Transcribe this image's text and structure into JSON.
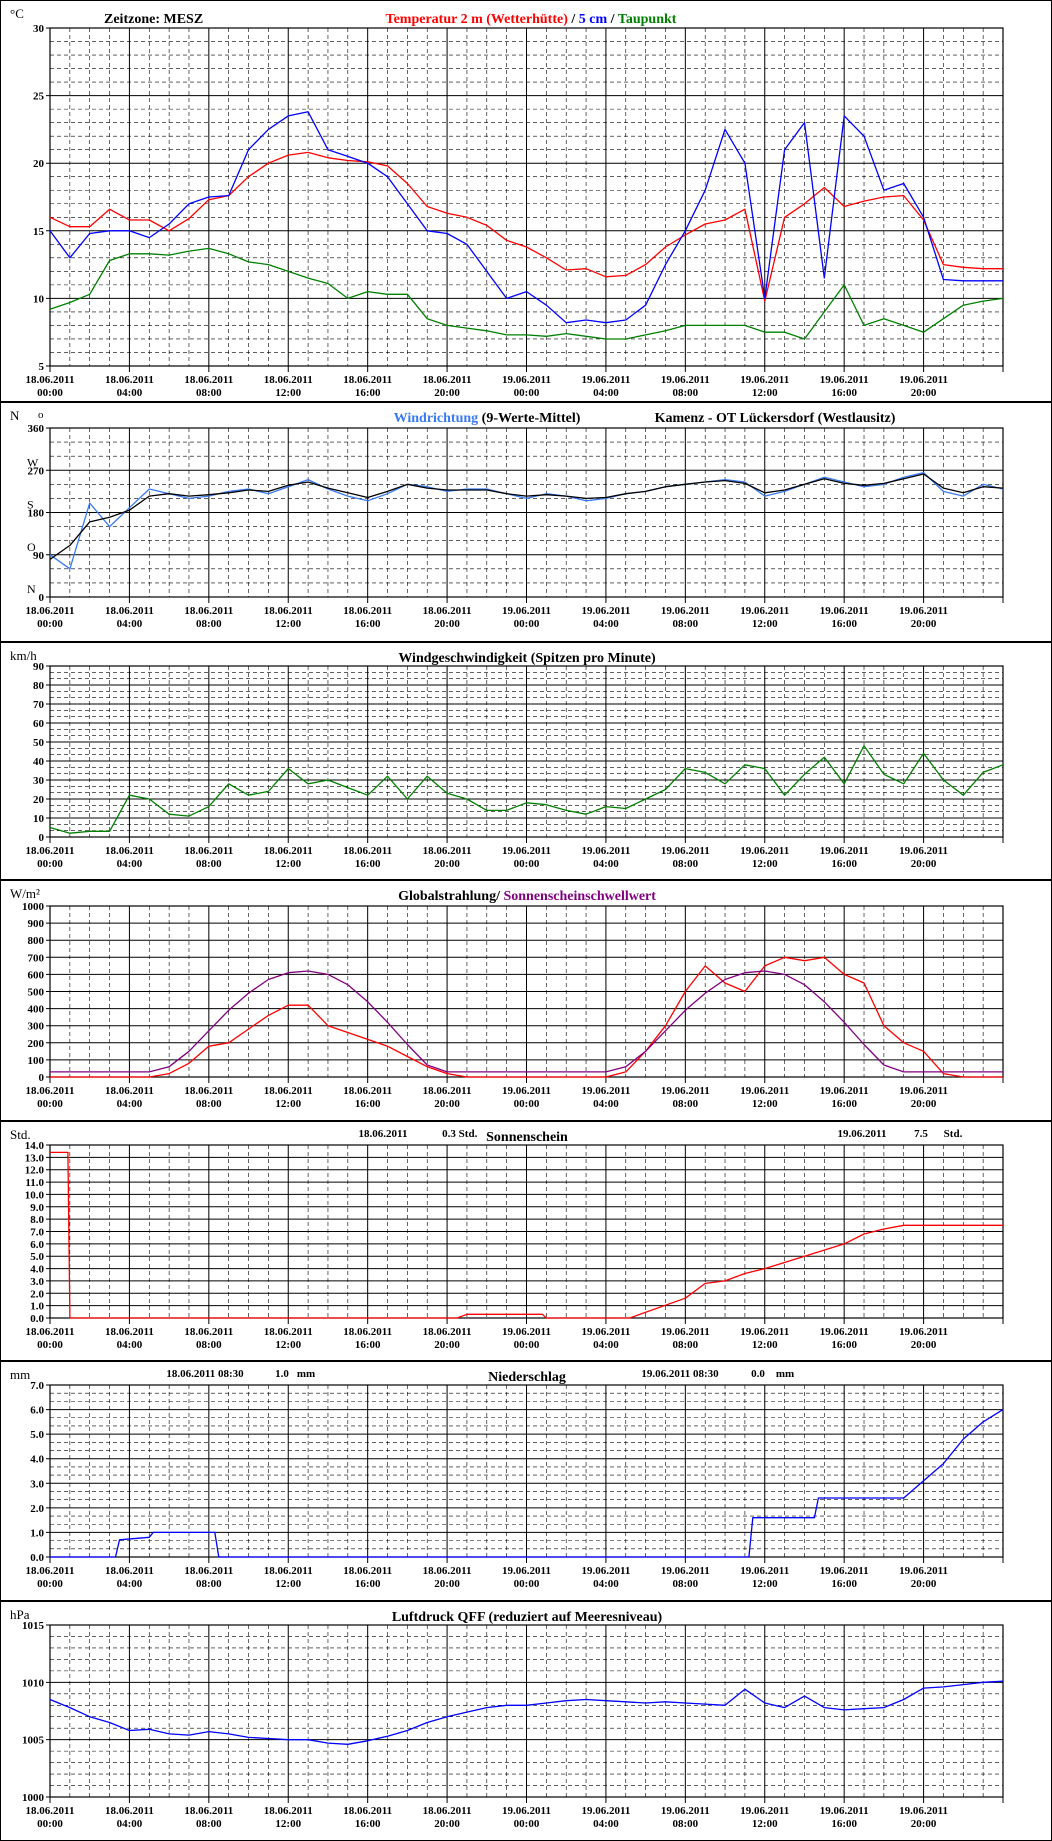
{
  "x_ticks": [
    [
      "18.06.2011",
      "00:00"
    ],
    [
      "18.06.2011",
      "04:00"
    ],
    [
      "18.06.2011",
      "08:00"
    ],
    [
      "18.06.2011",
      "12:00"
    ],
    [
      "18.06.2011",
      "16:00"
    ],
    [
      "18.06.2011",
      "20:00"
    ],
    [
      "19.06.2011",
      "00:00"
    ],
    [
      "19.06.2011",
      "04:00"
    ],
    [
      "19.06.2011",
      "08:00"
    ],
    [
      "19.06.2011",
      "12:00"
    ],
    [
      "19.06.2011",
      "16:00"
    ],
    [
      "19.06.2011",
      "20:00"
    ]
  ],
  "chart_data": [
    {
      "id": "temperature",
      "type": "line",
      "unit_label": "°C",
      "header_left": "Zeitzone: MESZ",
      "title_parts": [
        {
          "text": "Temperatur 2 m (Wetterhütte)",
          "color": "#ff0000"
        },
        {
          "text": "  /  ",
          "color": "#000000"
        },
        {
          "text": "5 cm",
          "color": "#0000ff"
        },
        {
          "text": " / ",
          "color": "#000000"
        },
        {
          "text": "Taupunkt",
          "color": "#008000"
        }
      ],
      "ylim": [
        5,
        30
      ],
      "y_ticks": [
        5,
        10,
        15,
        20,
        25,
        30
      ],
      "minor_per_major": 5,
      "x_hours": [
        0,
        1,
        2,
        3,
        4,
        5,
        6,
        7,
        8,
        9,
        10,
        11,
        12,
        13,
        14,
        15,
        16,
        17,
        18,
        19,
        20,
        21,
        22,
        23,
        24,
        25,
        26,
        27,
        28,
        29,
        30,
        31,
        32,
        33,
        34,
        35,
        36,
        37,
        38,
        39,
        40,
        41,
        42,
        43,
        44,
        45,
        46,
        47,
        48
      ],
      "series": [
        {
          "name": "Temperatur 2 m (Wetterhütte)",
          "color": "#ff0000",
          "values": [
            16.0,
            15.3,
            15.3,
            16.6,
            15.8,
            15.8,
            15.0,
            15.9,
            17.3,
            17.6,
            19.0,
            20.0,
            20.6,
            20.8,
            20.4,
            20.2,
            20.1,
            19.8,
            18.5,
            16.8,
            16.3,
            16.0,
            15.4,
            14.3,
            13.8,
            13.0,
            12.1,
            12.2,
            11.6,
            11.7,
            12.5,
            13.8,
            14.7,
            15.5,
            15.8,
            16.6,
            9.8,
            16.0,
            17.0,
            18.2,
            16.8,
            17.2,
            17.5,
            17.6,
            15.8,
            12.5,
            12.3,
            12.2,
            12.2
          ]
        },
        {
          "name": "5 cm",
          "color": "#0000ff",
          "values": [
            15.0,
            13.0,
            14.8,
            15.0,
            15.0,
            14.5,
            15.5,
            17.0,
            17.5,
            17.6,
            21.0,
            22.5,
            23.5,
            23.8,
            21.0,
            20.5,
            20.0,
            19.0,
            17.0,
            15.0,
            14.8,
            14.0,
            12.0,
            10.0,
            10.5,
            9.5,
            8.2,
            8.4,
            8.2,
            8.4,
            9.5,
            12.5,
            15.0,
            18.0,
            22.5,
            20.0,
            10.0,
            21.0,
            23.0,
            11.5,
            23.5,
            22.0,
            18.0,
            18.5,
            16.0,
            11.4,
            11.3,
            11.3,
            11.3
          ]
        },
        {
          "name": "Taupunkt",
          "color": "#008000",
          "values": [
            9.2,
            9.7,
            10.3,
            12.8,
            13.3,
            13.3,
            13.2,
            13.5,
            13.7,
            13.3,
            12.7,
            12.5,
            12.0,
            11.5,
            11.1,
            10.0,
            10.5,
            10.3,
            10.3,
            8.5,
            8.0,
            7.8,
            7.6,
            7.3,
            7.3,
            7.2,
            7.4,
            7.2,
            7.0,
            7.0,
            7.3,
            7.6,
            8.0,
            8.0,
            8.0,
            8.0,
            7.5,
            7.5,
            7.0,
            9.0,
            11.0,
            8.0,
            8.5,
            8.0,
            7.5,
            8.5,
            9.5,
            9.8,
            10.0
          ]
        }
      ]
    },
    {
      "id": "wind_direction",
      "type": "line",
      "unit_label": "N",
      "unit_label_extra": "o",
      "header_left": "",
      "title_parts": [
        {
          "text": "Windrichtung",
          "color": "#3a7af0"
        },
        {
          "text": " (9-Werte-Mittel)",
          "color": "#000000"
        }
      ],
      "title_right": "Kamenz - OT Lückersdorf (Westlausitz)",
      "ylim": [
        0,
        360
      ],
      "y_ticks": [
        0,
        90,
        180,
        270,
        360
      ],
      "y_tick_labels": [
        "0",
        "90",
        "180",
        "270",
        "360"
      ],
      "compass_labels": [
        {
          "label": "N",
          "value": 0
        },
        {
          "label": "O",
          "value": 90
        },
        {
          "label": "S",
          "value": 180
        },
        {
          "label": "W",
          "value": 270
        },
        {
          "label": "N",
          "value": 360
        }
      ],
      "minor_per_major": 3,
      "x_hours": [
        0,
        1,
        2,
        3,
        4,
        5,
        6,
        7,
        8,
        9,
        10,
        11,
        12,
        13,
        14,
        15,
        16,
        17,
        18,
        19,
        20,
        21,
        22,
        23,
        24,
        25,
        26,
        27,
        28,
        29,
        30,
        31,
        32,
        33,
        34,
        35,
        36,
        37,
        38,
        39,
        40,
        41,
        42,
        43,
        44,
        45,
        46,
        47,
        48
      ],
      "series": [
        {
          "name": "Windrichtung",
          "color": "#3a7af0",
          "values": [
            90,
            60,
            200,
            150,
            190,
            230,
            220,
            210,
            215,
            225,
            230,
            220,
            235,
            250,
            230,
            215,
            205,
            220,
            240,
            235,
            225,
            230,
            230,
            220,
            210,
            220,
            215,
            205,
            210,
            220,
            225,
            235,
            240,
            245,
            250,
            245,
            215,
            225,
            240,
            255,
            245,
            235,
            240,
            255,
            265,
            225,
            215,
            240,
            230
          ]
        },
        {
          "name": "9-Werte-Mittel",
          "color": "#000000",
          "values": [
            80,
            110,
            160,
            170,
            185,
            215,
            220,
            215,
            218,
            222,
            228,
            225,
            238,
            245,
            232,
            222,
            212,
            225,
            240,
            232,
            228,
            228,
            228,
            220,
            215,
            218,
            215,
            210,
            212,
            220,
            225,
            235,
            240,
            245,
            248,
            242,
            222,
            228,
            240,
            252,
            242,
            238,
            242,
            252,
            262,
            232,
            222,
            235,
            232
          ]
        }
      ]
    },
    {
      "id": "wind_speed",
      "type": "line",
      "unit_label": "km/h",
      "header_left": "",
      "title_parts": [
        {
          "text": "Windgeschwindigkeit (Spitzen pro Minute)",
          "color": "#000000"
        }
      ],
      "ylim": [
        0,
        90
      ],
      "y_ticks": [
        0,
        10,
        20,
        30,
        40,
        50,
        60,
        70,
        80,
        90
      ],
      "minor_per_major": 3,
      "x_hours": [
        0,
        1,
        2,
        3,
        4,
        5,
        6,
        7,
        8,
        9,
        10,
        11,
        12,
        13,
        14,
        15,
        16,
        17,
        18,
        19,
        20,
        21,
        22,
        23,
        24,
        25,
        26,
        27,
        28,
        29,
        30,
        31,
        32,
        33,
        34,
        35,
        36,
        37,
        38,
        39,
        40,
        41,
        42,
        43,
        44,
        45,
        46,
        47,
        48
      ],
      "series": [
        {
          "name": "Windgeschwindigkeit",
          "color": "#008000",
          "values": [
            5,
            2,
            3,
            3,
            22,
            20,
            12,
            11,
            16,
            28,
            22,
            24,
            36,
            28,
            30,
            26,
            22,
            32,
            20,
            32,
            23,
            20,
            14,
            14,
            18,
            17,
            14,
            12,
            16,
            15,
            20,
            25,
            36,
            34,
            28,
            38,
            36,
            22,
            33,
            42,
            28,
            48,
            33,
            28,
            44,
            30,
            22,
            34,
            38
          ]
        }
      ]
    },
    {
      "id": "global_radiation",
      "type": "line",
      "unit_label": "W/m²",
      "header_left": "",
      "title_parts": [
        {
          "text": "Globalstrahlung/ ",
          "color": "#000000"
        },
        {
          "text": "Sonnenscheinschwellwert",
          "color": "#800080"
        }
      ],
      "ylim": [
        0,
        1000
      ],
      "y_ticks": [
        0,
        100,
        200,
        300,
        400,
        500,
        600,
        700,
        800,
        900,
        1000
      ],
      "minor_per_major": 1,
      "x_hours": [
        0,
        1,
        2,
        3,
        4,
        5,
        6,
        7,
        8,
        9,
        10,
        11,
        12,
        13,
        14,
        15,
        16,
        17,
        18,
        19,
        20,
        21,
        22,
        23,
        24,
        25,
        26,
        27,
        28,
        29,
        30,
        31,
        32,
        33,
        34,
        35,
        36,
        37,
        38,
        39,
        40,
        41,
        42,
        43,
        44,
        45,
        46,
        47,
        48
      ],
      "series": [
        {
          "name": "Globalstrahlung",
          "color": "#ff0000",
          "values": [
            0,
            0,
            0,
            0,
            0,
            0,
            20,
            80,
            180,
            200,
            280,
            360,
            420,
            420,
            300,
            260,
            220,
            180,
            120,
            60,
            20,
            0,
            0,
            0,
            0,
            0,
            0,
            0,
            0,
            30,
            150,
            300,
            500,
            650,
            550,
            500,
            650,
            700,
            680,
            700,
            600,
            550,
            300,
            200,
            150,
            20,
            0,
            0,
            0
          ]
        },
        {
          "name": "Sonnenscheinschwellwert",
          "color": "#800080",
          "values": [
            30,
            30,
            30,
            30,
            30,
            30,
            60,
            150,
            270,
            390,
            490,
            570,
            610,
            620,
            600,
            540,
            440,
            320,
            190,
            70,
            30,
            30,
            30,
            30,
            30,
            30,
            30,
            30,
            30,
            60,
            150,
            270,
            390,
            490,
            570,
            610,
            620,
            600,
            540,
            440,
            320,
            190,
            70,
            30,
            30,
            30,
            30,
            30,
            30
          ]
        }
      ]
    },
    {
      "id": "sunshine",
      "type": "line",
      "unit_label": "Std.",
      "header_left": "",
      "title_parts": [
        {
          "text": "Sonnenschein",
          "color": "#000000"
        }
      ],
      "annotations": [
        {
          "date": "18.06.2011",
          "value": "0.3",
          "unit": "Std."
        },
        {
          "date": "19.06.2011",
          "value": "7.5",
          "unit": "Std."
        }
      ],
      "ylim": [
        0,
        14
      ],
      "y_ticks": [
        0,
        1,
        2,
        3,
        4,
        5,
        6,
        7,
        8,
        9,
        10,
        11,
        12,
        13,
        14
      ],
      "y_tick_labels": [
        "0.0",
        "1.0",
        "2.0",
        "3.0",
        "4.0",
        "5.0",
        "6.0",
        "7.0",
        "8.0",
        "9.0",
        "10.0",
        "11.0",
        "12.0",
        "13.0",
        "14.0"
      ],
      "minor_per_major": 1,
      "x_hours": [
        0,
        0.9,
        1.0,
        5,
        10,
        14,
        16,
        20.5,
        21,
        24.8,
        25,
        28,
        29.2,
        32,
        33,
        34,
        35,
        36,
        38,
        40,
        41,
        42,
        43,
        44,
        48
      ],
      "series": [
        {
          "name": "Sonnenschein",
          "color": "#ff0000",
          "values": [
            13.4,
            13.4,
            0,
            0,
            0,
            0,
            0,
            0,
            0.3,
            0.3,
            0,
            0,
            0,
            1.6,
            2.8,
            3.0,
            3.6,
            4.0,
            5.0,
            6.0,
            6.8,
            7.2,
            7.5,
            7.5,
            7.5
          ]
        }
      ]
    },
    {
      "id": "precipitation",
      "type": "line",
      "unit_label": "mm",
      "header_left": "",
      "title_parts": [
        {
          "text": "Niederschlag",
          "color": "#000000"
        }
      ],
      "annotations": [
        {
          "date": "18.06.2011 08:30",
          "value": "1.0",
          "unit": "mm"
        },
        {
          "date": "19.06.2011 08:30",
          "value": "0.0",
          "unit": "mm"
        }
      ],
      "ylim": [
        0,
        7
      ],
      "y_ticks": [
        0,
        1,
        2,
        3,
        4,
        5,
        6,
        7
      ],
      "y_tick_labels": [
        "0.0",
        "1.0",
        "2.0",
        "3.0",
        "4.0",
        "5.0",
        "6.0",
        "7.0"
      ],
      "minor_per_major": 3,
      "x_hours": [
        0,
        3.3,
        3.5,
        5.0,
        5.2,
        8.3,
        8.5,
        16,
        24,
        35.2,
        35.4,
        38.5,
        38.7,
        43,
        45,
        46,
        47,
        48
      ],
      "series": [
        {
          "name": "Niederschlag",
          "color": "#0000ff",
          "values": [
            0,
            0,
            0.7,
            0.8,
            1.0,
            1.0,
            0,
            0,
            0,
            0,
            1.6,
            1.6,
            2.4,
            2.4,
            3.8,
            4.8,
            5.5,
            6.0
          ]
        }
      ]
    },
    {
      "id": "pressure",
      "type": "line",
      "unit_label": "hPa",
      "header_left": "",
      "title_parts": [
        {
          "text": "Luftdruck QFF (reduziert auf Meeresniveau)",
          "color": "#000000"
        }
      ],
      "ylim": [
        1000,
        1015
      ],
      "y_ticks": [
        1000,
        1005,
        1010,
        1015
      ],
      "minor_per_major": 5,
      "x_hours": [
        0,
        1,
        2,
        3,
        4,
        5,
        6,
        7,
        8,
        9,
        10,
        11,
        12,
        13,
        14,
        15,
        16,
        17,
        18,
        19,
        20,
        21,
        22,
        23,
        24,
        25,
        26,
        27,
        28,
        29,
        30,
        31,
        32,
        33,
        34,
        35,
        36,
        37,
        38,
        39,
        40,
        41,
        42,
        43,
        44,
        45,
        46,
        47,
        48
      ],
      "series": [
        {
          "name": "Luftdruck QFF",
          "color": "#0000ff",
          "values": [
            1008.5,
            1007.8,
            1007.0,
            1006.5,
            1005.8,
            1005.9,
            1005.5,
            1005.4,
            1005.7,
            1005.5,
            1005.2,
            1005.1,
            1005.0,
            1005.0,
            1004.7,
            1004.6,
            1004.9,
            1005.3,
            1005.8,
            1006.5,
            1007.0,
            1007.4,
            1007.8,
            1008.0,
            1008.0,
            1008.2,
            1008.4,
            1008.5,
            1008.4,
            1008.3,
            1008.2,
            1008.3,
            1008.2,
            1008.1,
            1008.0,
            1009.4,
            1008.2,
            1007.8,
            1008.8,
            1007.8,
            1007.6,
            1007.7,
            1007.8,
            1008.5,
            1009.5,
            1009.6,
            1009.8,
            1010.0,
            1010.1
          ]
        }
      ]
    }
  ]
}
